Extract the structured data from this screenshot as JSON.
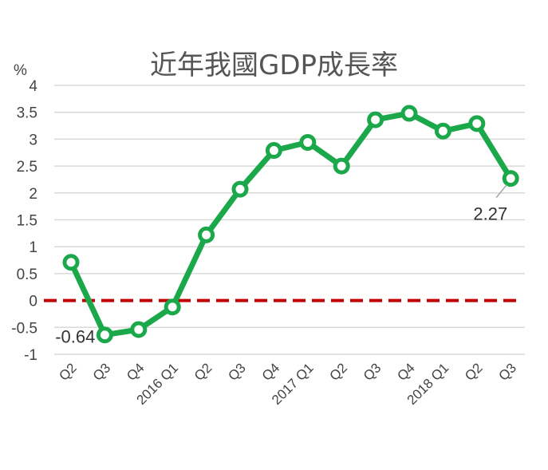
{
  "chart_data": {
    "type": "line",
    "title": "近年我國GDP成長率",
    "y_unit_label": "%",
    "ylim": [
      -1,
      4
    ],
    "y_ticks": [
      "-1",
      "-0.5",
      "0",
      "0.5",
      "1",
      "1.5",
      "2",
      "2.5",
      "3",
      "3.5",
      "4"
    ],
    "categories": [
      "Q2",
      "Q3",
      "Q4",
      "2016 Q1",
      "Q2",
      "Q3",
      "Q4",
      "2017 Q1",
      "Q2",
      "Q3",
      "Q4",
      "2018 Q1",
      "Q2",
      "Q3"
    ],
    "series": [
      {
        "values": [
          0.71,
          -0.64,
          -0.54,
          -0.12,
          1.22,
          2.07,
          2.79,
          2.94,
          2.5,
          3.36,
          3.48,
          3.15,
          3.29,
          2.27
        ],
        "color": "#1aa84a"
      }
    ],
    "zero_line_color": "#c00000",
    "data_labels": [
      {
        "index": 1,
        "text": "-0.64"
      },
      {
        "index": 13,
        "text": "2.27"
      }
    ],
    "grid": true
  }
}
